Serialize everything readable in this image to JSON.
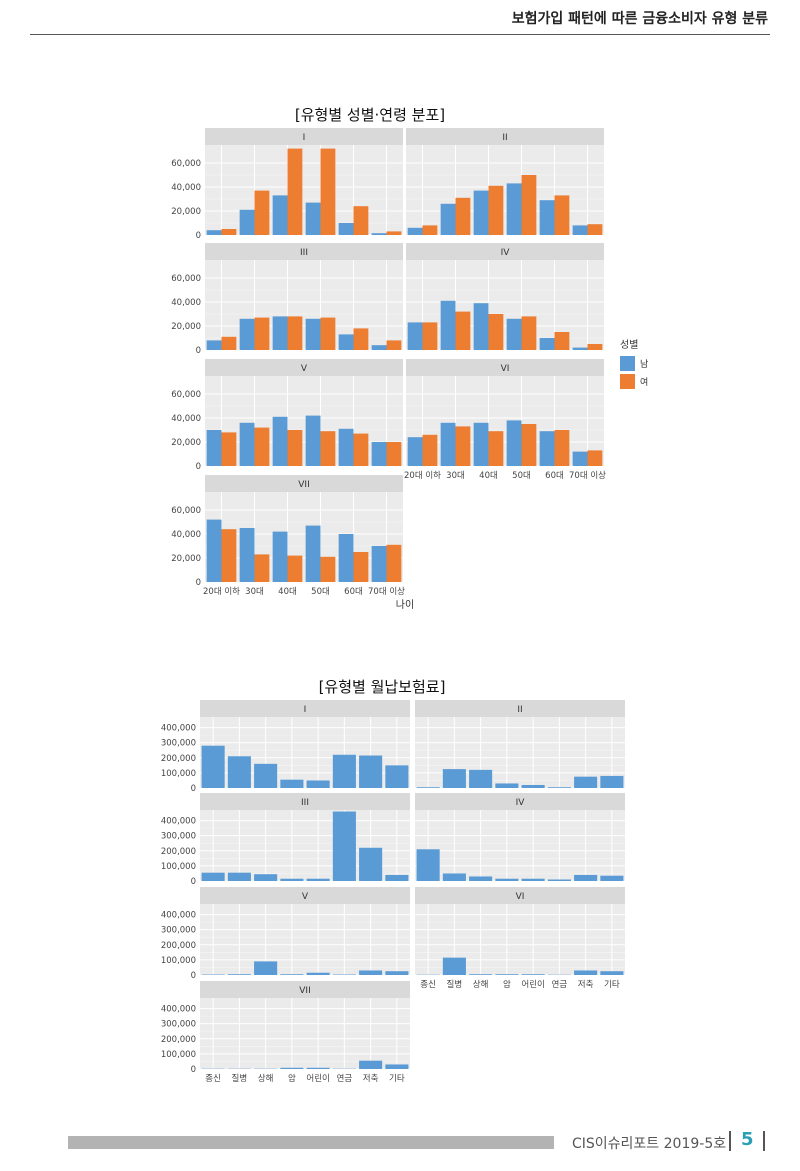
{
  "header": {
    "title": "보험가입 패턴에 따른 금융소비자 유형 분류"
  },
  "footer": {
    "report": "CIS이슈리포트 2019-5호",
    "page": "5"
  },
  "colors": {
    "male": "#5b9bd5",
    "female": "#ed7d31",
    "blue": "#5b9bd5",
    "panel": "#ebebeb",
    "strip": "#d9d9d9",
    "grid": "#ffffff"
  },
  "chart_data": [
    {
      "type": "bar",
      "title": "[유형별 성별·연령 분포]",
      "xlabel": "나이",
      "ylabel": "",
      "ylim": [
        0,
        75000
      ],
      "yticks": [
        0,
        20000,
        40000,
        60000
      ],
      "ytick_labels": [
        "0",
        "20,000",
        "40,000",
        "60,000"
      ],
      "categories": [
        "20대 이하",
        "30대",
        "40대",
        "50대",
        "60대",
        "70대 이상"
      ],
      "legend": {
        "title": "성별",
        "entries": [
          "남",
          "여"
        ],
        "position": "right"
      },
      "panels": [
        {
          "label": "I",
          "series": [
            {
              "name": "남",
              "values": [
                4000,
                21000,
                33000,
                27000,
                10000,
                1500
              ]
            },
            {
              "name": "여",
              "values": [
                5000,
                37000,
                72000,
                72000,
                24000,
                3000
              ]
            }
          ]
        },
        {
          "label": "II",
          "series": [
            {
              "name": "남",
              "values": [
                6000,
                26000,
                37000,
                43000,
                29000,
                8000
              ]
            },
            {
              "name": "여",
              "values": [
                8000,
                31000,
                41000,
                50000,
                33000,
                9000
              ]
            }
          ]
        },
        {
          "label": "III",
          "series": [
            {
              "name": "남",
              "values": [
                8000,
                26000,
                28000,
                26000,
                13000,
                4000
              ]
            },
            {
              "name": "여",
              "values": [
                11000,
                27000,
                28000,
                27000,
                18000,
                8000
              ]
            }
          ]
        },
        {
          "label": "IV",
          "series": [
            {
              "name": "남",
              "values": [
                23000,
                41000,
                39000,
                26000,
                10000,
                2000
              ]
            },
            {
              "name": "여",
              "values": [
                23000,
                32000,
                30000,
                28000,
                15000,
                5000
              ]
            }
          ]
        },
        {
          "label": "V",
          "series": [
            {
              "name": "남",
              "values": [
                30000,
                36000,
                41000,
                42000,
                31000,
                20000
              ]
            },
            {
              "name": "여",
              "values": [
                28000,
                32000,
                30000,
                29000,
                27000,
                20000
              ]
            }
          ]
        },
        {
          "label": "VI",
          "series": [
            {
              "name": "남",
              "values": [
                24000,
                36000,
                36000,
                38000,
                29000,
                12000
              ]
            },
            {
              "name": "여",
              "values": [
                26000,
                33000,
                29000,
                35000,
                30000,
                13000
              ]
            }
          ]
        },
        {
          "label": "VII",
          "series": [
            {
              "name": "남",
              "values": [
                52000,
                45000,
                42000,
                47000,
                40000,
                30000
              ]
            },
            {
              "name": "여",
              "values": [
                44000,
                23000,
                22000,
                21000,
                25000,
                31000
              ]
            }
          ]
        }
      ]
    },
    {
      "type": "bar",
      "title": "[유형별 월납보험료]",
      "xlabel": "",
      "ylabel": "",
      "ylim": [
        0,
        470000
      ],
      "yticks": [
        0,
        100000,
        200000,
        300000,
        400000
      ],
      "ytick_labels": [
        "0",
        "100,000",
        "200,000",
        "300,000",
        "400,000"
      ],
      "categories": [
        "종신",
        "질병",
        "상해",
        "암",
        "어린이",
        "연금",
        "저축",
        "기타"
      ],
      "panels": [
        {
          "label": "I",
          "values": [
            280000,
            210000,
            160000,
            55000,
            50000,
            220000,
            215000,
            150000
          ]
        },
        {
          "label": "II",
          "values": [
            5000,
            125000,
            120000,
            30000,
            20000,
            5000,
            75000,
            80000
          ]
        },
        {
          "label": "III",
          "values": [
            55000,
            55000,
            45000,
            15000,
            15000,
            460000,
            220000,
            40000
          ]
        },
        {
          "label": "IV",
          "values": [
            210000,
            50000,
            30000,
            15000,
            15000,
            10000,
            40000,
            35000
          ]
        },
        {
          "label": "V",
          "values": [
            3000,
            5000,
            90000,
            5000,
            15000,
            3000,
            30000,
            25000
          ]
        },
        {
          "label": "VI",
          "values": [
            2000,
            115000,
            5000,
            5000,
            5000,
            2000,
            30000,
            25000
          ]
        },
        {
          "label": "VII",
          "values": [
            2000,
            2000,
            2000,
            8000,
            8000,
            2000,
            55000,
            30000
          ]
        }
      ]
    }
  ]
}
